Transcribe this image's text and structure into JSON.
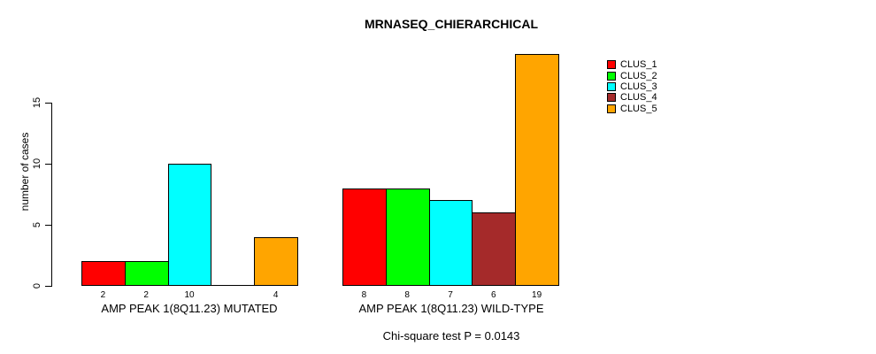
{
  "title": "MRNASEQ_CHIERARCHICAL",
  "subtitle": "Chi-square test P = 0.0143",
  "chart_data": {
    "type": "bar",
    "title": "MRNASEQ_CHIERARCHICAL",
    "xlabel": "",
    "ylabel": "number of cases",
    "ylim": [
      0,
      19
    ],
    "yticks": [
      0,
      5,
      10,
      15
    ],
    "grid": false,
    "legend_position": "top-right",
    "categories": [
      "CLUS_1",
      "CLUS_2",
      "CLUS_3",
      "CLUS_4",
      "CLUS_5"
    ],
    "colors": [
      "#FF0000",
      "#00FF00",
      "#00FFFF",
      "#A52A2A",
      "#FFA500"
    ],
    "groups": [
      {
        "label": "AMP PEAK 1(8Q11.23) MUTATED",
        "values": [
          2,
          2,
          10,
          0,
          4
        ],
        "bar_labels": [
          "2",
          "2",
          "10",
          "",
          "4"
        ]
      },
      {
        "label": "AMP PEAK 1(8Q11.23) WILD-TYPE",
        "values": [
          8,
          8,
          7,
          6,
          19
        ],
        "bar_labels": [
          "8",
          "8",
          "7",
          "6",
          "19"
        ]
      }
    ],
    "annotation": "Chi-square test P = 0.0143"
  },
  "legend": {
    "items": [
      {
        "label": "CLUS_1",
        "color": "#FF0000"
      },
      {
        "label": "CLUS_2",
        "color": "#00FF00"
      },
      {
        "label": "CLUS_3",
        "color": "#00FFFF"
      },
      {
        "label": "CLUS_4",
        "color": "#A52A2A"
      },
      {
        "label": "CLUS_5",
        "color": "#FFA500"
      }
    ]
  }
}
